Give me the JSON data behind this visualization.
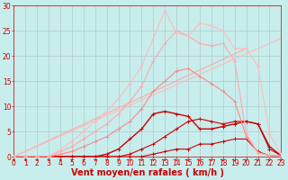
{
  "title": "",
  "xlabel": "Vent moyen/en rafales ( km/h )",
  "xlim": [
    0,
    23
  ],
  "ylim": [
    0,
    30
  ],
  "xticks": [
    0,
    1,
    2,
    3,
    4,
    5,
    6,
    7,
    8,
    9,
    10,
    11,
    12,
    13,
    14,
    15,
    16,
    17,
    18,
    19,
    20,
    21,
    22,
    23
  ],
  "yticks": [
    0,
    5,
    10,
    15,
    20,
    25,
    30
  ],
  "bg_color": "#c8eded",
  "grid_color": "#b0c8c8",
  "lines": [
    {
      "x": [
        0,
        1,
        2,
        3,
        4,
        5,
        6,
        7,
        8,
        9,
        10,
        11,
        12,
        13,
        14,
        15,
        16,
        17,
        18,
        19,
        20,
        21,
        22,
        23
      ],
      "y": [
        0,
        0,
        0,
        0,
        0,
        0,
        0,
        0,
        0,
        0,
        0,
        0,
        0.5,
        1.0,
        1.5,
        1.5,
        2.5,
        2.5,
        3.0,
        3.5,
        3.5,
        1.0,
        0.2,
        0.1
      ],
      "color": "#cc0000",
      "lw": 0.8,
      "ms": 2.5,
      "marker": "+"
    },
    {
      "x": [
        0,
        1,
        2,
        3,
        4,
        5,
        6,
        7,
        8,
        9,
        10,
        11,
        12,
        13,
        14,
        15,
        16,
        17,
        18,
        19,
        20,
        21,
        22,
        23
      ],
      "y": [
        0,
        0,
        0,
        0,
        0,
        0,
        0,
        0,
        0,
        0,
        0.5,
        1.5,
        2.5,
        4.0,
        5.5,
        7.0,
        7.5,
        7.0,
        6.5,
        7.0,
        7.0,
        6.5,
        1.5,
        0.2
      ],
      "color": "#cc0000",
      "lw": 0.8,
      "ms": 2.5,
      "marker": "+"
    },
    {
      "x": [
        0,
        1,
        2,
        3,
        4,
        5,
        6,
        7,
        8,
        9,
        10,
        11,
        12,
        13,
        14,
        15,
        16,
        17,
        18,
        19,
        20,
        21,
        22,
        23
      ],
      "y": [
        0,
        0,
        0,
        0,
        0,
        0,
        0,
        0,
        0.5,
        1.5,
        3.5,
        5.5,
        8.5,
        9.0,
        8.5,
        8.0,
        5.5,
        5.5,
        6.0,
        6.5,
        7.0,
        6.5,
        2.0,
        0.2
      ],
      "color": "#cc0000",
      "lw": 1.0,
      "ms": 3.0,
      "marker": "+"
    },
    {
      "x": [
        0,
        1,
        2,
        3,
        4,
        5,
        6,
        7,
        8,
        9,
        10,
        11,
        12,
        13,
        14,
        15,
        16,
        17,
        18,
        19,
        20,
        21,
        22,
        23
      ],
      "y": [
        0,
        0,
        0,
        0,
        0.5,
        1.0,
        2.0,
        3.0,
        4.0,
        5.5,
        7.0,
        9.5,
        13.0,
        15.0,
        17.0,
        17.5,
        16.0,
        14.5,
        13.0,
        11.0,
        4.0,
        0.8,
        0.2,
        0.1
      ],
      "color": "#ff8888",
      "lw": 0.8,
      "ms": 2.5,
      "marker": "+"
    },
    {
      "x": [
        0,
        1,
        2,
        3,
        4,
        5,
        6,
        7,
        8,
        9,
        10,
        11,
        12,
        13,
        14,
        15,
        16,
        17,
        18,
        19,
        20,
        21,
        22,
        23
      ],
      "y": [
        0,
        0,
        0,
        0,
        1.0,
        2.0,
        3.5,
        5.0,
        6.5,
        8.5,
        11.0,
        14.0,
        19.0,
        22.5,
        25.0,
        24.0,
        22.5,
        22.0,
        22.5,
        19.0,
        4.5,
        0.8,
        0.2,
        0.1
      ],
      "color": "#ffaaaa",
      "lw": 0.8,
      "ms": 2.5,
      "marker": "+"
    },
    {
      "x": [
        0,
        1,
        2,
        3,
        4,
        5,
        6,
        7,
        8,
        9,
        10,
        11,
        12,
        13,
        14,
        15,
        16,
        17,
        18,
        19,
        20,
        21,
        22,
        23
      ],
      "y": [
        0,
        0,
        0,
        0,
        1.5,
        3.0,
        5.0,
        7.0,
        9.0,
        11.5,
        14.5,
        18.0,
        23.5,
        29.0,
        24.5,
        24.0,
        26.5,
        26.0,
        25.0,
        21.5,
        21.5,
        18.0,
        4.5,
        0.5
      ],
      "color": "#ffbbbb",
      "lw": 0.8,
      "ms": 2.5,
      "marker": "+"
    }
  ],
  "diag_lines": [
    {
      "x": [
        0,
        20
      ],
      "y": [
        0,
        21.5
      ],
      "color": "#ffaaaa",
      "lw": 0.8
    },
    {
      "x": [
        0,
        23
      ],
      "y": [
        0,
        23.5
      ],
      "color": "#ffbbbb",
      "lw": 0.8
    }
  ],
  "xlabel_color": "#cc0000",
  "xlabel_fontsize": 7,
  "tick_fontsize": 5.5,
  "tick_color": "#cc0000",
  "arrow_color": "#cc0000"
}
